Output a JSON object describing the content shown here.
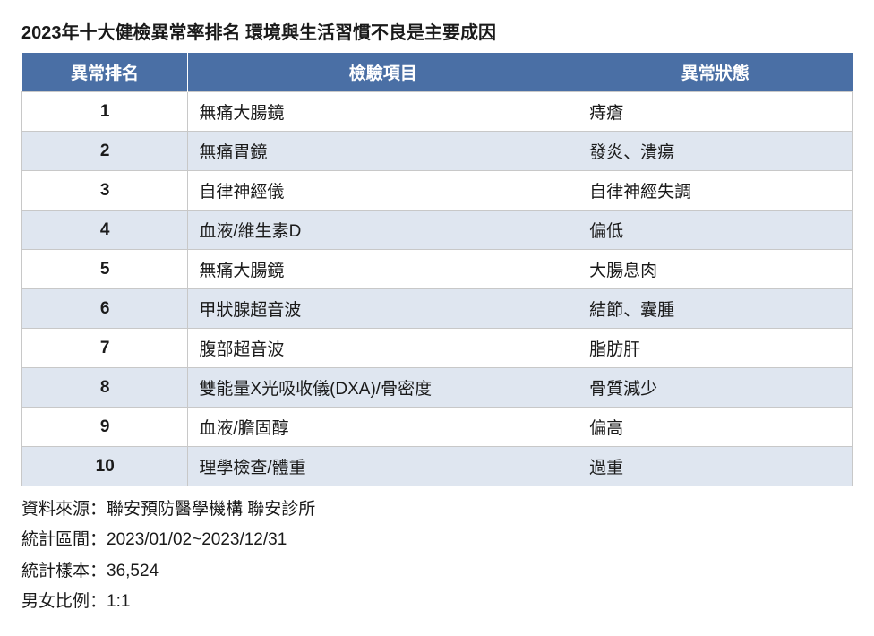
{
  "title": "2023年十大健檢異常率排名 環境與生活習慣不良是主要成因",
  "table": {
    "header_bg": "#4a6fa5",
    "header_color": "#ffffff",
    "row_alt_bg": "#dfe6f0",
    "row_bg": "#ffffff",
    "border_color": "#c8c8c8",
    "columns": [
      "異常排名",
      "檢驗項目",
      "異常狀態"
    ],
    "col_widths": [
      "20%",
      "47%",
      "33%"
    ],
    "rows": [
      {
        "rank": "1",
        "item": "無痛大腸鏡",
        "status": "痔瘡"
      },
      {
        "rank": "2",
        "item": "無痛胃鏡",
        "status": "發炎、潰瘍"
      },
      {
        "rank": "3",
        "item": "自律神經儀",
        "status": "自律神經失調"
      },
      {
        "rank": "4",
        "item": "血液/維生素D",
        "status": "偏低"
      },
      {
        "rank": "5",
        "item": "無痛大腸鏡",
        "status": "大腸息肉"
      },
      {
        "rank": "6",
        "item": "甲狀腺超音波",
        "status": "結節、囊腫"
      },
      {
        "rank": "7",
        "item": "腹部超音波",
        "status": "脂肪肝"
      },
      {
        "rank": "8",
        "item": "雙能量X光吸收儀(DXA)/骨密度",
        "status": "骨質減少"
      },
      {
        "rank": "9",
        "item": "血液/膽固醇",
        "status": "偏高"
      },
      {
        "rank": "10",
        "item": "理學檢查/體重",
        "status": "過重"
      }
    ]
  },
  "notes": {
    "source": "資料來源：聯安預防醫學機構 聯安診所",
    "period": "統計區間：2023/01/02~2023/12/31",
    "sample": "統計樣本：36,524",
    "ratio": "男女比例：1:1"
  }
}
